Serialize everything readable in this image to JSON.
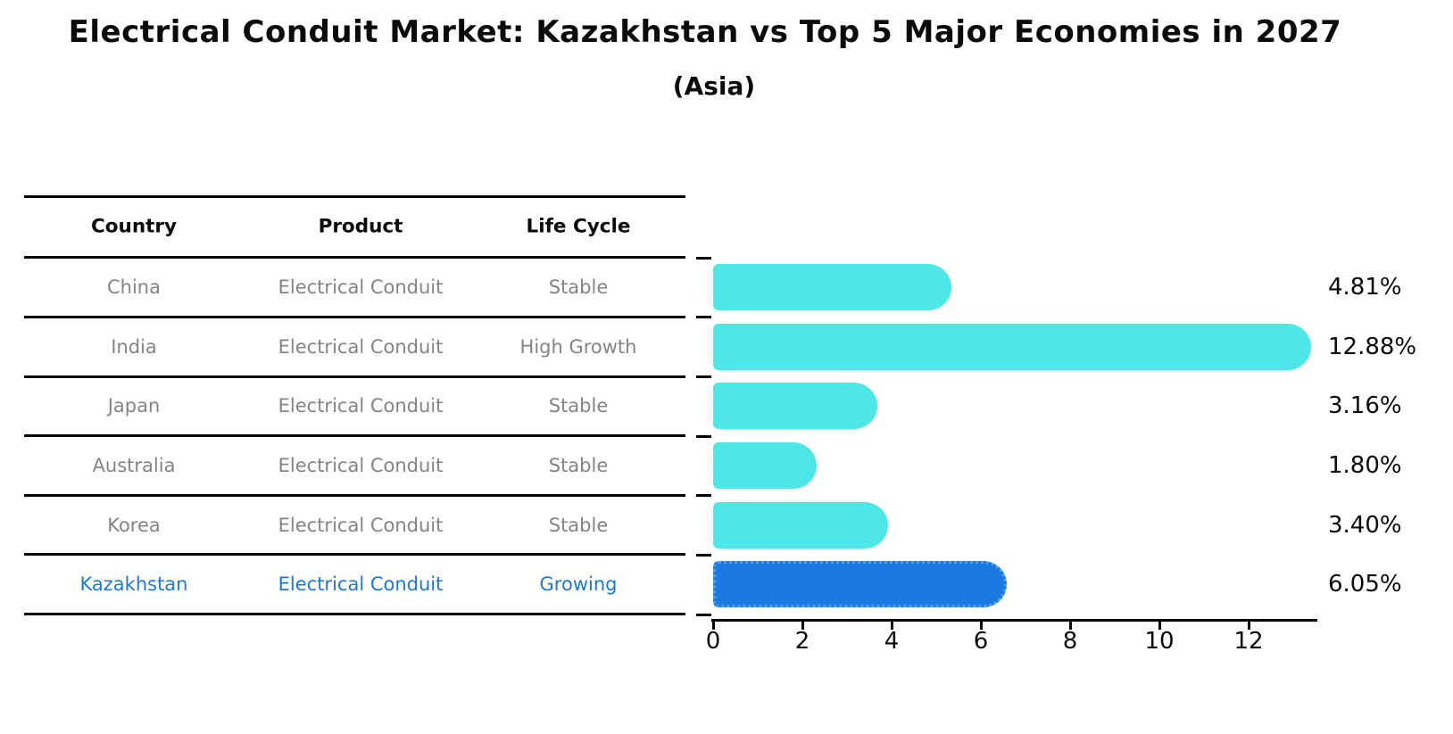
{
  "title": "Electrical Conduit Market: Kazakhstan vs Top 5 Major Economies in 2027",
  "subtitle": "(Asia)",
  "table": {
    "headers": {
      "country": "Country",
      "product": "Product",
      "life_cycle": "Life Cycle"
    },
    "rows": [
      {
        "country": "China",
        "product": "Electrical Conduit",
        "life_cycle": "Stable"
      },
      {
        "country": "India",
        "product": "Electrical Conduit",
        "life_cycle": "High Growth"
      },
      {
        "country": "Japan",
        "product": "Electrical Conduit",
        "life_cycle": "Stable"
      },
      {
        "country": "Australia",
        "product": "Electrical Conduit",
        "life_cycle": "Stable"
      },
      {
        "country": "Korea",
        "product": "Electrical Conduit",
        "life_cycle": "Stable"
      },
      {
        "country": "Kazakhstan",
        "product": "Electrical Conduit",
        "life_cycle": "Growing"
      }
    ],
    "highlighted_row": "Kazakhstan"
  },
  "chart_data": {
    "type": "bar",
    "orientation": "horizontal",
    "title": "Electrical Conduit Market: Kazakhstan vs Top 5 Major Economies in 2027",
    "subtitle": "(Asia)",
    "categories": [
      "China",
      "India",
      "Japan",
      "Australia",
      "Korea",
      "Kazakhstan"
    ],
    "values": [
      4.81,
      12.88,
      3.16,
      1.8,
      3.4,
      6.05
    ],
    "value_labels": [
      "4.81%",
      "12.88%",
      "3.16%",
      "1.80%",
      "3.40%",
      "6.05%"
    ],
    "xticks": [
      "0",
      "2",
      "4",
      "6",
      "8",
      "10",
      "12"
    ],
    "xlim": [
      0,
      13.5
    ],
    "grid": false,
    "legend": false,
    "highlight_index": 5,
    "colors": {
      "bar": "#4DE7E7",
      "highlight_bar": "#1E78E1",
      "highlight_border": "#45A5EE",
      "highlight_text": "#2178CC",
      "row_text": "#848484",
      "axis": "#000000"
    }
  }
}
